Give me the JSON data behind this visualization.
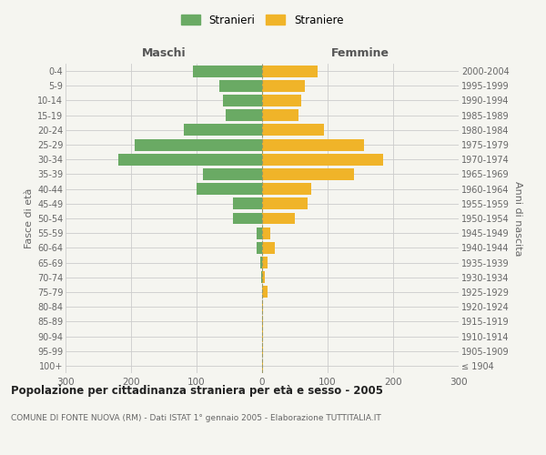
{
  "age_groups": [
    "100+",
    "95-99",
    "90-94",
    "85-89",
    "80-84",
    "75-79",
    "70-74",
    "65-69",
    "60-64",
    "55-59",
    "50-54",
    "45-49",
    "40-44",
    "35-39",
    "30-34",
    "25-29",
    "20-24",
    "15-19",
    "10-14",
    "5-9",
    "0-4"
  ],
  "birth_years": [
    "≤ 1904",
    "1905-1909",
    "1910-1914",
    "1915-1919",
    "1920-1924",
    "1925-1929",
    "1930-1934",
    "1935-1939",
    "1940-1944",
    "1945-1949",
    "1950-1954",
    "1955-1959",
    "1960-1964",
    "1965-1969",
    "1970-1974",
    "1975-1979",
    "1980-1984",
    "1985-1989",
    "1990-1994",
    "1995-1999",
    "2000-2004"
  ],
  "males": [
    0,
    0,
    0,
    0,
    0,
    0,
    2,
    3,
    8,
    8,
    45,
    45,
    100,
    90,
    220,
    195,
    120,
    55,
    60,
    65,
    105
  ],
  "females": [
    1,
    1,
    1,
    2,
    2,
    8,
    4,
    8,
    20,
    12,
    50,
    70,
    75,
    140,
    185,
    155,
    95,
    55,
    60,
    65,
    85
  ],
  "male_color": "#6aaa64",
  "female_color": "#f0b429",
  "background_color": "#f5f5f0",
  "grid_color": "#cccccc",
  "title": "Popolazione per cittadinanza straniera per età e sesso - 2005",
  "subtitle": "COMUNE DI FONTE NUOVA (RM) - Dati ISTAT 1° gennaio 2005 - Elaborazione TUTTITALIA.IT",
  "xlabel_left": "Maschi",
  "xlabel_right": "Femmine",
  "ylabel_left": "Fasce di età",
  "ylabel_right": "Anni di nascita",
  "legend_male": "Stranieri",
  "legend_female": "Straniere",
  "xlim": 300,
  "bar_height": 0.8
}
